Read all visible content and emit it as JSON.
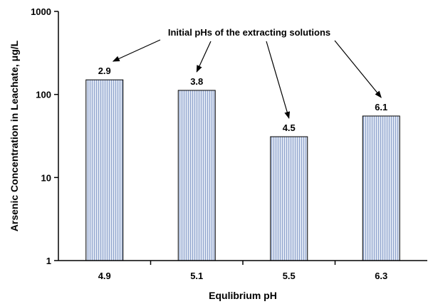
{
  "chart_data": {
    "type": "bar",
    "xlabel": "Equlibrium pH",
    "ylabel_main": "Arsenic Concentration in Leachate, ",
    "ylabel_unit": "μg/L",
    "y_scale": "log",
    "ylim": [
      1,
      1000
    ],
    "y_ticks": [
      "1",
      "10",
      "100",
      "1000"
    ],
    "categories": [
      "4.9",
      "5.1",
      "5.5",
      "6.3"
    ],
    "values": [
      150,
      112,
      31,
      55
    ],
    "bar_labels": [
      "2.9",
      "3.8",
      "4.5",
      "6.1"
    ],
    "annotation": "Initial pHs of the extracting solutions",
    "bar_fill": "#dce4f2",
    "bar_hatch": "#8fa3cc",
    "grid": false
  }
}
